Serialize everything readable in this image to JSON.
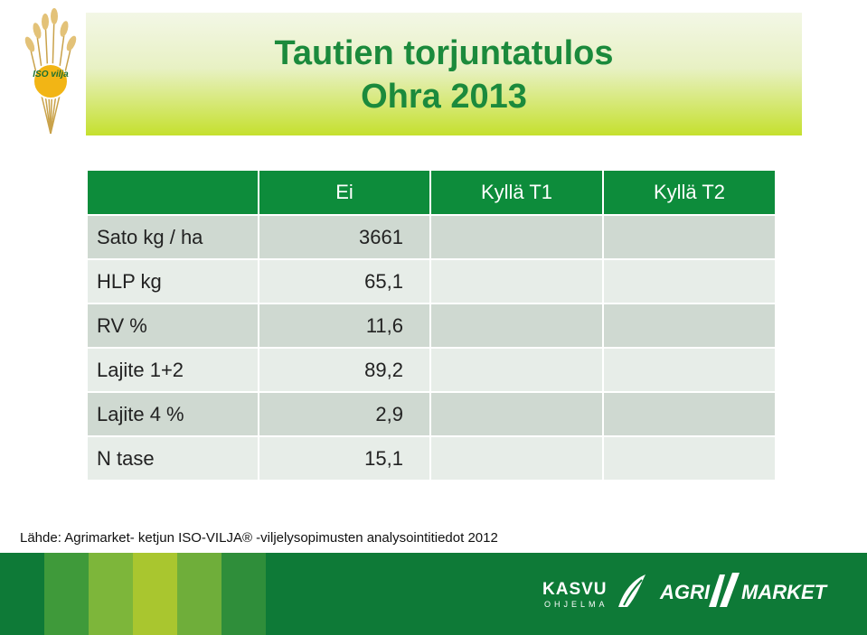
{
  "title": {
    "line1": "Tautien torjuntatulos",
    "line2": "Ohra 2013"
  },
  "logo": {
    "icon": "iso-vilja-wheat-logo",
    "text": "ISO vilja"
  },
  "table": {
    "headers": [
      "",
      "Ei",
      "Kyllä T1",
      "Kyllä T2"
    ],
    "rows": [
      {
        "label": "Sato kg / ha",
        "ei": "3661",
        "t1": "",
        "t2": ""
      },
      {
        "label": "HLP kg",
        "ei": "65,1",
        "t1": "",
        "t2": ""
      },
      {
        "label": "RV %",
        "ei": "11,6",
        "t1": "",
        "t2": ""
      },
      {
        "label": "Lajite 1+2",
        "ei": "89,2",
        "t1": "",
        "t2": ""
      },
      {
        "label": "Lajite 4 %",
        "ei": "2,9",
        "t1": "",
        "t2": ""
      },
      {
        "label": "N tase",
        "ei": "15,1",
        "t1": "",
        "t2": ""
      }
    ]
  },
  "source": "Lähde: Agrimarket- ketjun ISO-VILJA® -viljelysopimusten analysointitiedot 2012",
  "footer": {
    "kasvu": {
      "word": "KASVU",
      "sub": "OHJELMA",
      "icon": "kasvu-leaf-icon"
    },
    "agrimarket": {
      "left": "AGRI",
      "right": "MARKET",
      "icon": "agrimarket-wings-icon"
    }
  },
  "colors": {
    "brand_green": "#1b8a3c",
    "header_green": "#0d8c3b",
    "footer_green": "#0e7a37",
    "lime": "#c5e02e",
    "row_dark": "#cfd9d1",
    "row_light": "#e7ede8"
  }
}
